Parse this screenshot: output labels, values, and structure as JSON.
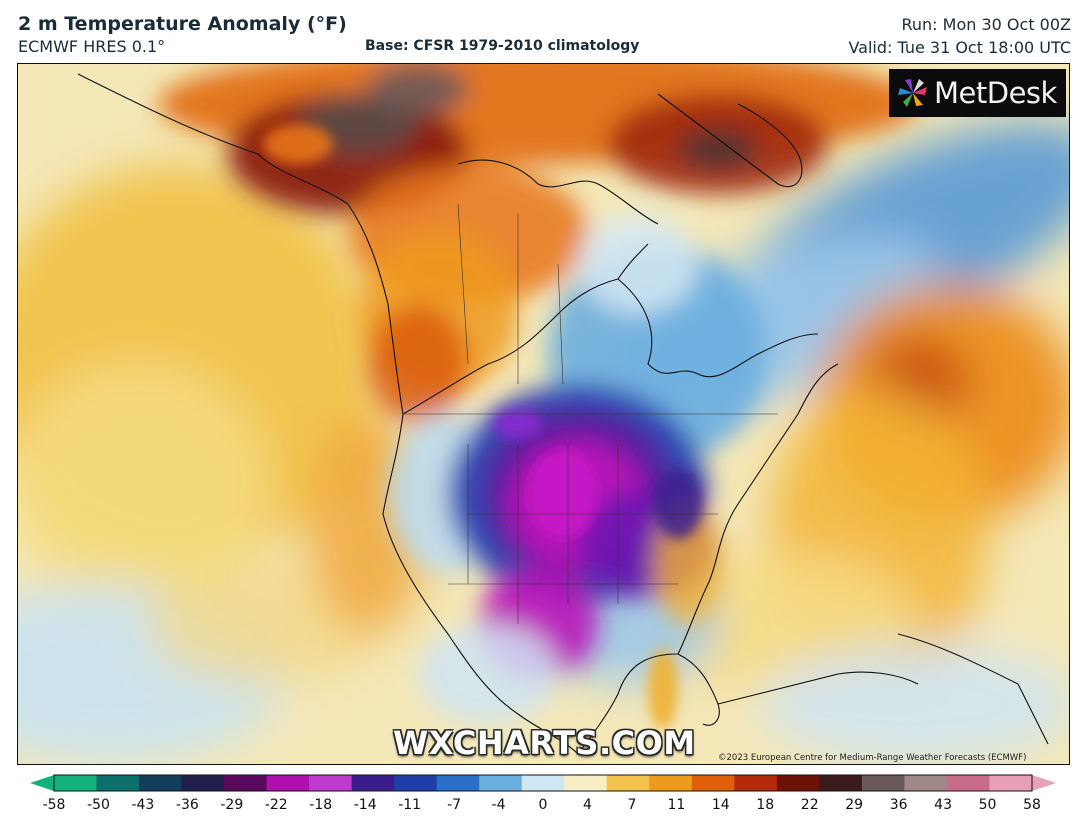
{
  "header": {
    "title": "2 m Temperature Anomaly (°F)",
    "model": "ECMWF HRES 0.1°",
    "base": "Base: CFSR 1979-2010 climatology",
    "run": "Run: Mon 30 Oct 00Z",
    "valid": "Valid: Tue 31 Oct 18:00 UTC"
  },
  "logo": {
    "text": "MetDesk",
    "icon": "metdesk-pinwheel-icon"
  },
  "watermark": "WXCHARTS.COM",
  "copyright": "©2023 European Centre for Medium-Range Weather Forecasts (ECMWF)",
  "colorbar": {
    "labels": [
      "-58",
      "-50",
      "-43",
      "-36",
      "-29",
      "-22",
      "-18",
      "-14",
      "-11",
      "-7",
      "-4",
      "0",
      "4",
      "7",
      "11",
      "14",
      "18",
      "22",
      "29",
      "36",
      "43",
      "50",
      "58"
    ],
    "colors": [
      "#12b07a",
      "#0d6f6c",
      "#123e5a",
      "#1f1f4a",
      "#5a0a5c",
      "#b010b0",
      "#c03ad0",
      "#3a1c8c",
      "#1e3fa8",
      "#2a70c8",
      "#6aaee0",
      "#cfe6f3",
      "#f7efc6",
      "#f3c24a",
      "#ee9a1c",
      "#e0600a",
      "#b52a0a",
      "#6e1206",
      "#3a1a1a",
      "#6a5a5a",
      "#a08888",
      "#c86a8a",
      "#e8a0b8"
    ]
  },
  "colors": {
    "neutral": "#f5f3ea",
    "cold_core": "#b914b9",
    "warm_core": "#8a1a0a",
    "ocean_warm": "#f0b830",
    "ocean_cool": "#a8d0ea"
  }
}
